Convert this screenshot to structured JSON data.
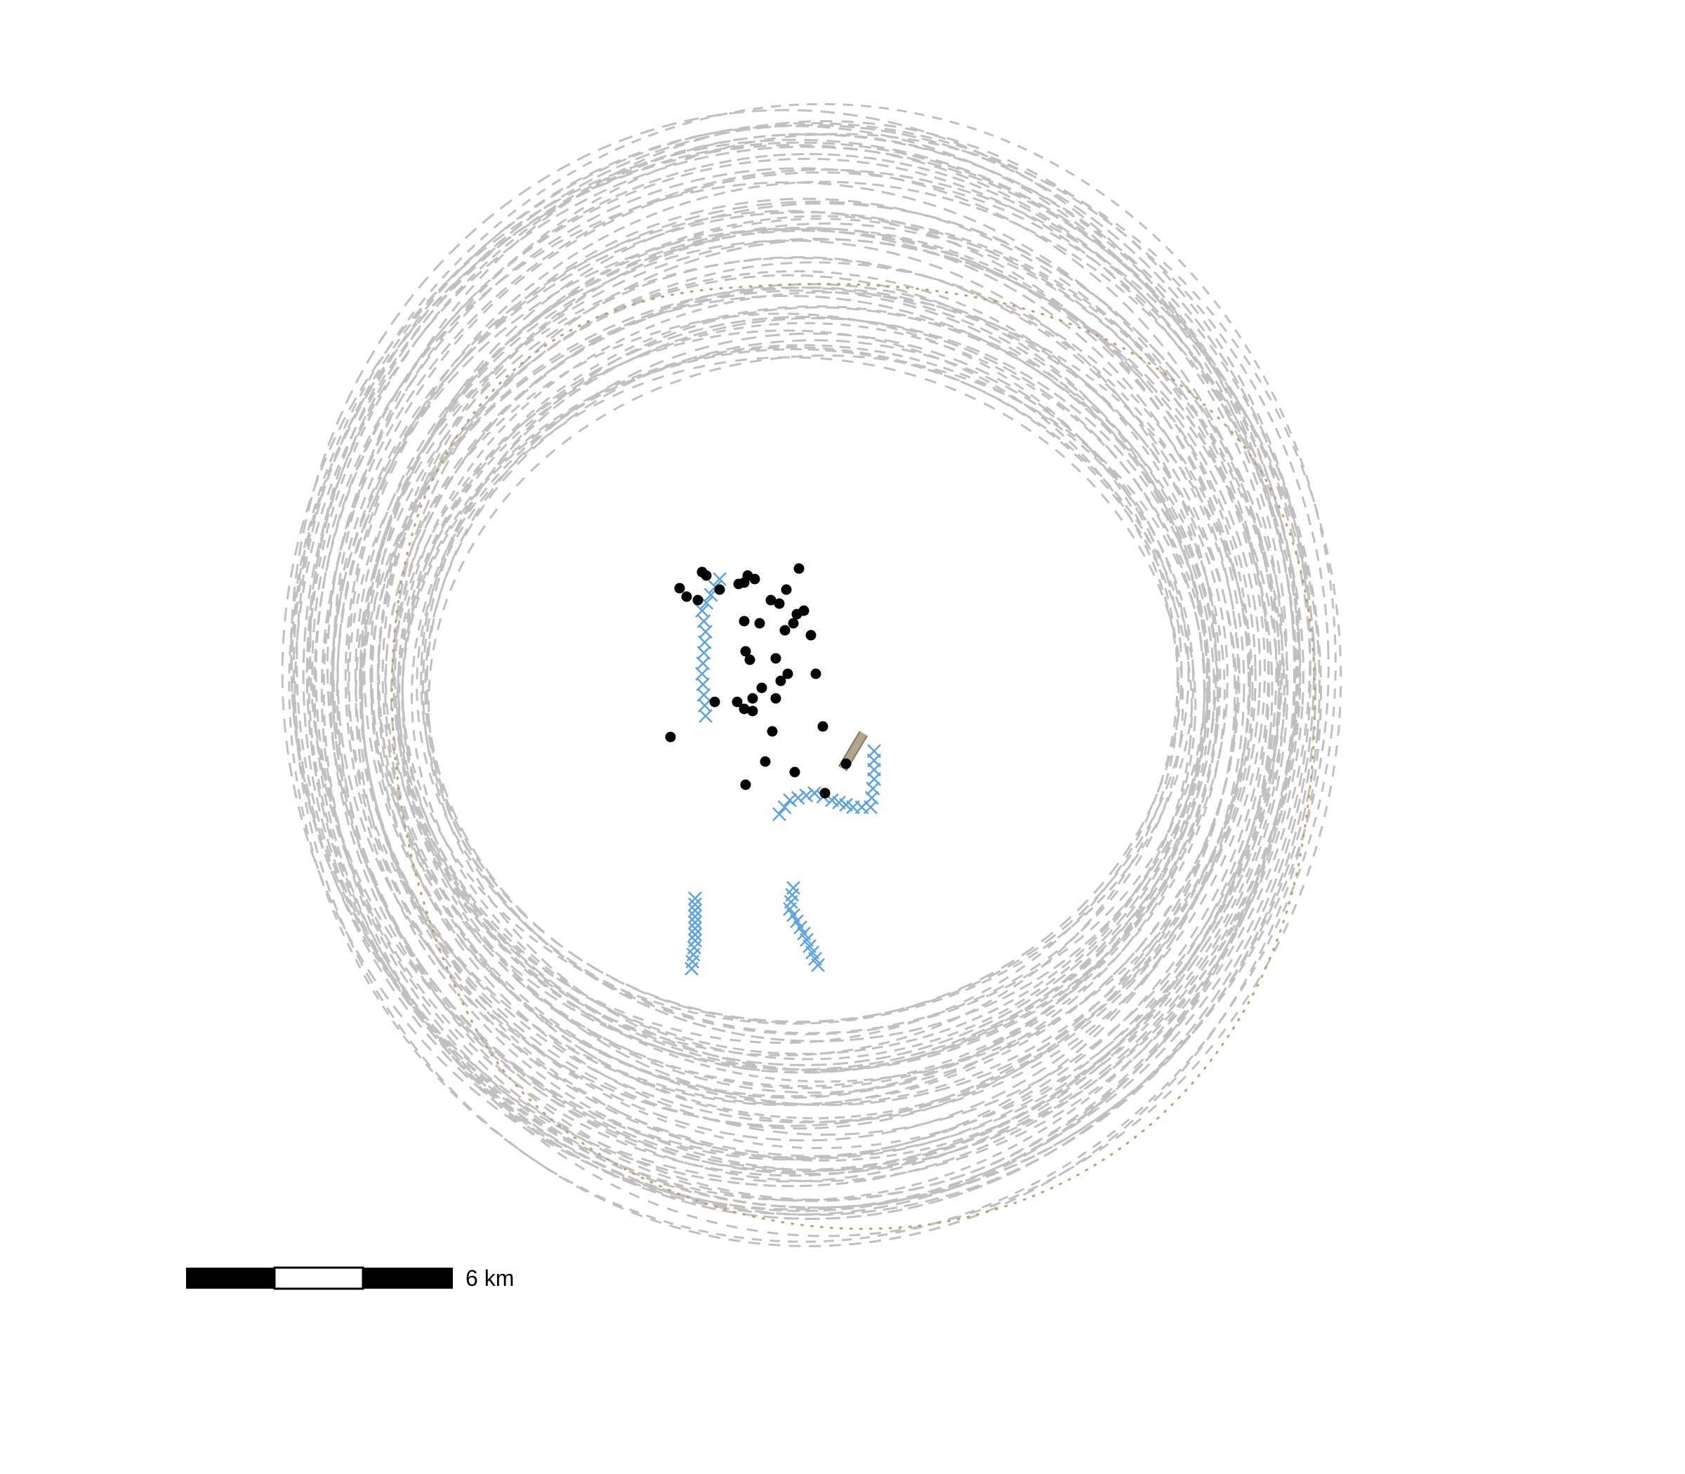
{
  "map": {
    "title": "",
    "scale_bar": {
      "label": "6 km",
      "segments": 3
    },
    "colors": {
      "rings": "#c0c0c0",
      "boundary": "#b9a46a",
      "points": "#000000",
      "crosses": "#5aa2e8",
      "road": "#b3a689"
    },
    "layers": [
      {
        "name": "concentric-dashed-contours",
        "style": "dashed",
        "color": "#c0c0c0"
      },
      {
        "name": "dotted-boundary",
        "style": "dotted",
        "color": "#b9a46a"
      },
      {
        "name": "black-point-features",
        "style": "filled-circle",
        "color": "#000000"
      },
      {
        "name": "blue-cross-line-features",
        "style": "x-marker",
        "color": "#5aa2e8"
      },
      {
        "name": "tan-segment-feature",
        "style": "thick-line",
        "color": "#b3a689"
      }
    ]
  }
}
